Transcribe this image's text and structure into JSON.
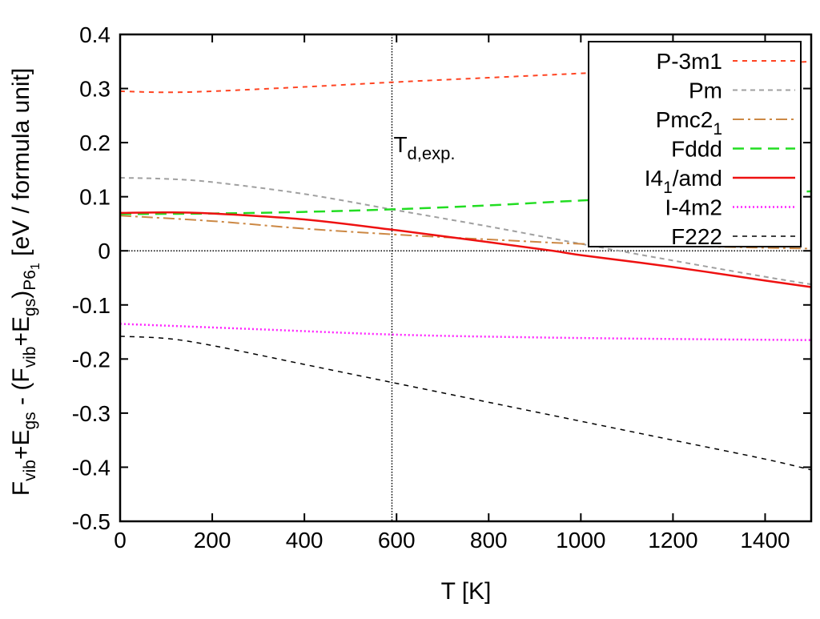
{
  "chart_data": {
    "type": "line",
    "xlabel": "T [K]",
    "ylabel_parts": [
      {
        "t": "F"
      },
      {
        "t": "vib",
        "sub": true
      },
      {
        "t": "+E"
      },
      {
        "t": "gs",
        "sub": true
      },
      {
        "t": " - (F"
      },
      {
        "t": "vib",
        "sub": true
      },
      {
        "t": "+E"
      },
      {
        "t": "gs",
        "sub": true
      },
      {
        "t": ")"
      },
      {
        "t": "P6",
        "sub": true
      },
      {
        "t": "1",
        "subsub": true
      },
      {
        "t": "  [eV / formula unit]"
      }
    ],
    "xlim": [
      0,
      1500
    ],
    "ylim": [
      -0.5,
      0.4
    ],
    "xticks": [
      0,
      200,
      400,
      600,
      800,
      1000,
      1200,
      1400
    ],
    "yticks": [
      0.4,
      0.3,
      0.2,
      0.1,
      0,
      -0.1,
      -0.2,
      -0.3,
      -0.4,
      -0.5
    ],
    "ytick_labels": [
      "0.4",
      "0.3",
      "0.2",
      "0.1",
      "0",
      "-0.1",
      "-0.2",
      "-0.3",
      "-0.4",
      "-0.5"
    ],
    "grid": false,
    "legend": "top-right",
    "zero_line": true,
    "annotation": {
      "text": "T",
      "sub": "d,exp.",
      "x": 590
    },
    "series": [
      {
        "name": "P-3m1",
        "main": "P-3m1",
        "sub": "",
        "rest": "",
        "color": "#ff4422",
        "dash": "6,6",
        "width": 2,
        "x": [
          0,
          100,
          200,
          400,
          600,
          800,
          1000,
          1200,
          1500
        ],
        "y": [
          0.295,
          0.293,
          0.295,
          0.303,
          0.312,
          0.32,
          0.328,
          0.336,
          0.35
        ]
      },
      {
        "name": "Pm",
        "main": "Pm",
        "sub": "",
        "rest": "",
        "color": "#a0a0a0",
        "dash": "6,5",
        "width": 2,
        "x": [
          0,
          100,
          200,
          400,
          600,
          800,
          1000,
          1200,
          1400,
          1500
        ],
        "y": [
          0.135,
          0.133,
          0.127,
          0.105,
          0.075,
          0.045,
          0.013,
          -0.018,
          -0.048,
          -0.062
        ]
      },
      {
        "name": "Pmc21",
        "main": "Pmc2",
        "sub": "1",
        "rest": "",
        "color": "#cc8844",
        "dash": "14,5,3,5",
        "width": 2,
        "x": [
          0,
          200,
          400,
          600,
          800,
          1000,
          1200,
          1500
        ],
        "y": [
          0.065,
          0.055,
          0.041,
          0.03,
          0.021,
          0.013,
          0.009,
          0.004
        ]
      },
      {
        "name": "Fddd",
        "main": "Fddd",
        "sub": "",
        "rest": "",
        "color": "#22dd22",
        "dash": "14,8",
        "width": 2.5,
        "x": [
          0,
          200,
          400,
          600,
          800,
          1000,
          1200,
          1500
        ],
        "y": [
          0.068,
          0.069,
          0.072,
          0.077,
          0.084,
          0.093,
          0.1,
          0.11
        ]
      },
      {
        "name": "I41/amd",
        "main": "I4",
        "sub": "1",
        "rest": "/amd",
        "color": "#ee1111",
        "dash": "",
        "width": 2.5,
        "x": [
          0,
          100,
          200,
          400,
          600,
          800,
          940,
          1000,
          1200,
          1400,
          1500
        ],
        "y": [
          0.07,
          0.071,
          0.069,
          0.058,
          0.038,
          0.016,
          0,
          -0.008,
          -0.03,
          -0.055,
          -0.067
        ]
      },
      {
        "name": "I-4m2",
        "main": "I-4m2",
        "sub": "",
        "rest": "",
        "color": "#ff22ff",
        "dash": "2,3",
        "width": 2.5,
        "x": [
          0,
          300,
          600,
          900,
          1200,
          1500
        ],
        "y": [
          -0.135,
          -0.145,
          -0.155,
          -0.16,
          -0.163,
          -0.165
        ]
      },
      {
        "name": "F222",
        "main": "F222",
        "sub": "",
        "rest": "",
        "color": "#000000",
        "dash": "6,6",
        "width": 1.5,
        "x": [
          0,
          100,
          200,
          400,
          600,
          800,
          1000,
          1200,
          1400,
          1500
        ],
        "y": [
          -0.158,
          -0.162,
          -0.175,
          -0.21,
          -0.245,
          -0.28,
          -0.315,
          -0.35,
          -0.385,
          -0.405
        ]
      }
    ]
  }
}
